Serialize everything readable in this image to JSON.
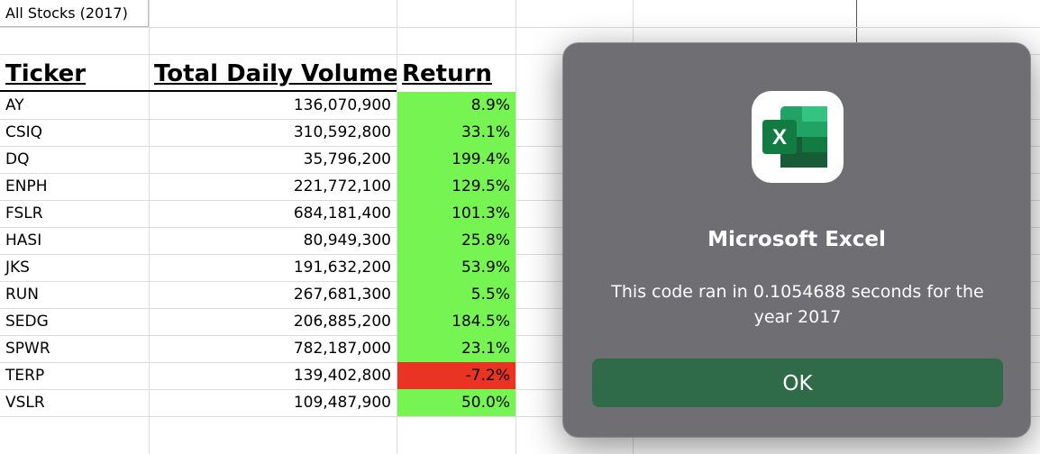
{
  "sheet": {
    "title": "All Stocks (2017)",
    "headers": {
      "ticker": "Ticker",
      "volume": "Total Daily Volume",
      "return": "Return"
    },
    "rows": [
      {
        "ticker": "AY",
        "volume": "136,070,900",
        "return": "8.9%",
        "positive": true
      },
      {
        "ticker": "CSIQ",
        "volume": "310,592,800",
        "return": "33.1%",
        "positive": true
      },
      {
        "ticker": "DQ",
        "volume": "35,796,200",
        "return": "199.4%",
        "positive": true
      },
      {
        "ticker": "ENPH",
        "volume": "221,772,100",
        "return": "129.5%",
        "positive": true
      },
      {
        "ticker": "FSLR",
        "volume": "684,181,400",
        "return": "101.3%",
        "positive": true
      },
      {
        "ticker": "HASI",
        "volume": "80,949,300",
        "return": "25.8%",
        "positive": true
      },
      {
        "ticker": "JKS",
        "volume": "191,632,200",
        "return": "53.9%",
        "positive": true
      },
      {
        "ticker": "RUN",
        "volume": "267,681,300",
        "return": "5.5%",
        "positive": true
      },
      {
        "ticker": "SEDG",
        "volume": "206,885,200",
        "return": "184.5%",
        "positive": true
      },
      {
        "ticker": "SPWR",
        "volume": "782,187,000",
        "return": "23.1%",
        "positive": true
      },
      {
        "ticker": "TERP",
        "volume": "139,402,800",
        "return": "-7.2%",
        "positive": false
      },
      {
        "ticker": "VSLR",
        "volume": "109,487,900",
        "return": "50.0%",
        "positive": true
      }
    ]
  },
  "colors": {
    "positive": "#76f452",
    "negative": "#e93323"
  },
  "dialog": {
    "app_icon": "excel-icon",
    "icon_letter": "X",
    "title": "Microsoft Excel",
    "message": "This code ran in 0.1054688 seconds for the year 2017",
    "ok_label": "OK"
  }
}
